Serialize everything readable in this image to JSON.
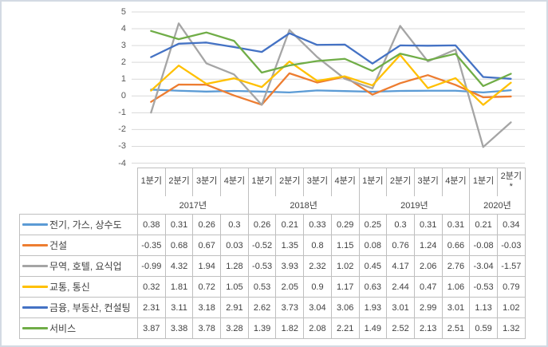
{
  "chart_data": {
    "type": "line",
    "title": "",
    "xlabel": "",
    "ylabel": "",
    "ylim": [
      -4,
      5
    ],
    "y_ticks": [
      5,
      4,
      3,
      2,
      1,
      0,
      -1,
      -2,
      -3,
      -4
    ],
    "grid": true,
    "legend_position": "data-table-left-column",
    "footnote_marker": "*",
    "x_groups": [
      {
        "year": "2017년",
        "quarters": [
          "1분기",
          "2분기",
          "3분기",
          "4분기"
        ]
      },
      {
        "year": "2018년",
        "quarters": [
          "1분기",
          "2분기",
          "3분기",
          "4분기"
        ]
      },
      {
        "year": "2019년",
        "quarters": [
          "1분기",
          "2분기",
          "3분기",
          "4분기"
        ]
      },
      {
        "year": "2020년",
        "quarters": [
          "1분기",
          "2분기\n*"
        ]
      }
    ],
    "series": [
      {
        "key": "electricity-gas-water",
        "name": "전기, 가스, 상수도",
        "color": "#5B9BD5",
        "values": [
          0.38,
          0.31,
          0.26,
          0.3,
          0.26,
          0.21,
          0.33,
          0.29,
          0.25,
          0.3,
          0.31,
          0.31,
          0.21,
          0.34
        ]
      },
      {
        "key": "construction",
        "name": "건설",
        "color": "#ED7D31",
        "values": [
          -0.35,
          0.68,
          0.67,
          0.03,
          -0.52,
          1.35,
          0.8,
          1.15,
          0.08,
          0.76,
          1.24,
          0.66,
          -0.08,
          -0.03
        ]
      },
      {
        "key": "trade-hotel-food",
        "name": "무역, 호텔, 요식업",
        "color": "#A5A5A5",
        "values": [
          -0.99,
          4.32,
          1.94,
          1.28,
          -0.53,
          3.93,
          2.32,
          1.02,
          0.45,
          4.17,
          2.06,
          2.76,
          -3.04,
          -1.57
        ]
      },
      {
        "key": "transport-communication",
        "name": "교통, 통신",
        "color": "#FFC000",
        "values": [
          0.32,
          1.81,
          0.72,
          1.05,
          0.53,
          2.05,
          0.9,
          1.17,
          0.63,
          2.44,
          0.47,
          1.06,
          -0.53,
          0.79
        ]
      },
      {
        "key": "finance-realestate-consulting",
        "name": "금융, 부동산, 컨설팅",
        "color": "#4472C4",
        "values": [
          2.31,
          3.11,
          3.18,
          2.91,
          2.62,
          3.73,
          3.04,
          3.06,
          1.93,
          3.01,
          2.99,
          3.01,
          1.13,
          1.02
        ]
      },
      {
        "key": "services",
        "name": "서비스",
        "color": "#70AD47",
        "values": [
          3.87,
          3.38,
          3.78,
          3.28,
          1.39,
          1.82,
          2.08,
          2.21,
          1.49,
          2.52,
          2.13,
          2.51,
          0.59,
          1.32
        ]
      }
    ]
  },
  "colors": {
    "frame_border": "#D3DAE3",
    "gridline": "#D9D9D9",
    "table_border": "#BFBFBF",
    "table_text": "#404040",
    "axis_text": "#595959"
  }
}
